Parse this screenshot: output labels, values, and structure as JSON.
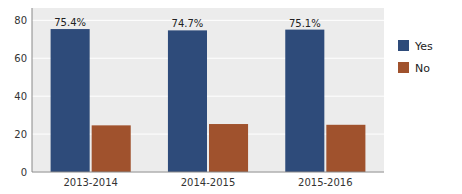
{
  "chart_data": {
    "type": "bar",
    "categories": [
      "2013-2014",
      "2014-2015",
      "2015-2016"
    ],
    "series": [
      {
        "name": "Yes",
        "color": "#2E4B7A",
        "values": [
          75.4,
          74.7,
          75.1
        ],
        "data_labels": true,
        "value_labels": [
          "75.4%",
          "74.7%",
          "75.1%"
        ]
      },
      {
        "name": "No",
        "color": "#A0522D",
        "values": [
          24.6,
          25.3,
          24.9
        ]
      }
    ],
    "ylim": [
      0,
      86.5
    ],
    "yticks": [
      0,
      20,
      40,
      60,
      80
    ],
    "grid": true,
    "legend": "right"
  }
}
